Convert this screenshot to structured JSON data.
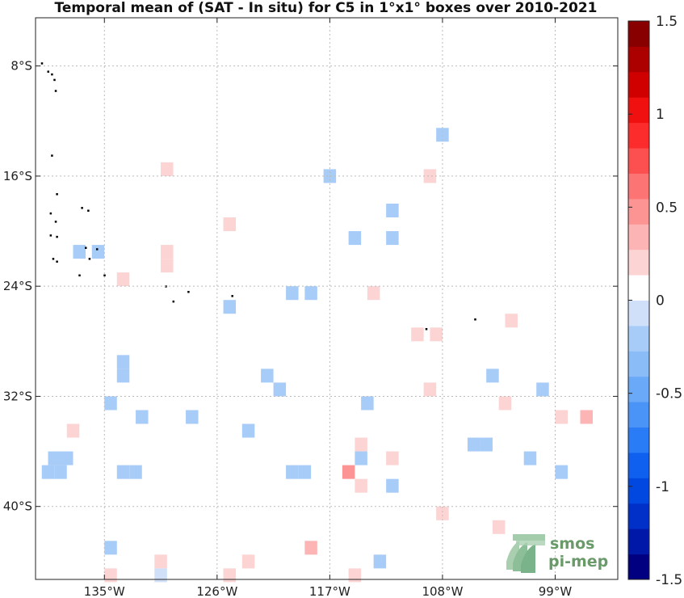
{
  "title": "Temporal mean of (SAT - In situ) for C5 in 1°x1° boxes over 2010-2021",
  "map": {
    "lon_range": [
      -140.5,
      -94.0
    ],
    "lat_range": [
      -45.3,
      -4.5
    ],
    "lon_ticks": [
      {
        "value": -135,
        "label": "135°W"
      },
      {
        "value": -126,
        "label": "126°W"
      },
      {
        "value": -117,
        "label": "117°W"
      },
      {
        "value": -108,
        "label": "108°W"
      },
      {
        "value": -99,
        "label": "99°W"
      }
    ],
    "lat_ticks": [
      {
        "value": -8,
        "label": "8°S"
      },
      {
        "value": -16,
        "label": "16°S"
      },
      {
        "value": -24,
        "label": "24°S"
      },
      {
        "value": -32,
        "label": "32°S"
      },
      {
        "value": -40,
        "label": "40°S"
      }
    ],
    "grid": true,
    "grid_style": "dotted",
    "land_color": "#000000",
    "boxes": [
      {
        "lon": -108.0,
        "lat": -13.0,
        "v": -0.15
      },
      {
        "lon": -130.0,
        "lat": -15.5,
        "v": 0.15
      },
      {
        "lon": -117.0,
        "lat": -16.0,
        "v": -0.15
      },
      {
        "lon": -109.0,
        "lat": -16.0,
        "v": 0.2
      },
      {
        "lon": -112.0,
        "lat": -18.5,
        "v": -0.15
      },
      {
        "lon": -125.0,
        "lat": -19.5,
        "v": 0.15
      },
      {
        "lon": -115.0,
        "lat": -20.5,
        "v": -0.15
      },
      {
        "lon": -112.0,
        "lat": -20.5,
        "v": -0.15
      },
      {
        "lon": -137.0,
        "lat": -21.5,
        "v": -0.2
      },
      {
        "lon": -135.5,
        "lat": -21.5,
        "v": -0.2
      },
      {
        "lon": -130.0,
        "lat": -21.5,
        "v": 0.15
      },
      {
        "lon": -130.0,
        "lat": -22.5,
        "v": 0.15
      },
      {
        "lon": -133.5,
        "lat": -23.5,
        "v": 0.2
      },
      {
        "lon": -120.0,
        "lat": -24.5,
        "v": -0.15
      },
      {
        "lon": -118.5,
        "lat": -24.5,
        "v": -0.15
      },
      {
        "lon": -113.5,
        "lat": -24.5,
        "v": 0.2
      },
      {
        "lon": -125.0,
        "lat": -25.5,
        "v": -0.15
      },
      {
        "lon": -102.5,
        "lat": -26.5,
        "v": 0.2
      },
      {
        "lon": -110.0,
        "lat": -27.5,
        "v": 0.2
      },
      {
        "lon": -108.5,
        "lat": -27.5,
        "v": 0.2
      },
      {
        "lon": -133.5,
        "lat": -29.5,
        "v": -0.15
      },
      {
        "lon": -133.5,
        "lat": -30.5,
        "v": -0.15
      },
      {
        "lon": -122.0,
        "lat": -30.5,
        "v": -0.2
      },
      {
        "lon": -104.0,
        "lat": -30.5,
        "v": -0.2
      },
      {
        "lon": -121.0,
        "lat": -31.5,
        "v": -0.15
      },
      {
        "lon": -109.0,
        "lat": -31.5,
        "v": 0.2
      },
      {
        "lon": -100.0,
        "lat": -31.5,
        "v": -0.2
      },
      {
        "lon": -134.5,
        "lat": -32.5,
        "v": -0.15
      },
      {
        "lon": -114.0,
        "lat": -32.5,
        "v": -0.15
      },
      {
        "lon": -103.0,
        "lat": -32.5,
        "v": 0.2
      },
      {
        "lon": -132.0,
        "lat": -33.5,
        "v": -0.15
      },
      {
        "lon": -128.0,
        "lat": -33.5,
        "v": -0.15
      },
      {
        "lon": -98.5,
        "lat": -33.5,
        "v": 0.2
      },
      {
        "lon": -96.5,
        "lat": -33.5,
        "v": 0.3
      },
      {
        "lon": -137.5,
        "lat": -34.5,
        "v": 0.2
      },
      {
        "lon": -123.5,
        "lat": -34.5,
        "v": -0.15
      },
      {
        "lon": -114.5,
        "lat": -35.5,
        "v": 0.15
      },
      {
        "lon": -105.5,
        "lat": -35.5,
        "v": -0.2
      },
      {
        "lon": -104.5,
        "lat": -35.5,
        "v": -0.2
      },
      {
        "lon": -139.0,
        "lat": -36.5,
        "v": -0.15
      },
      {
        "lon": -138.0,
        "lat": -36.5,
        "v": -0.15
      },
      {
        "lon": -114.5,
        "lat": -36.5,
        "v": -0.15
      },
      {
        "lon": -112.0,
        "lat": -36.5,
        "v": 0.2
      },
      {
        "lon": -101.0,
        "lat": -36.5,
        "v": -0.2
      },
      {
        "lon": -139.5,
        "lat": -37.5,
        "v": -0.15
      },
      {
        "lon": -138.5,
        "lat": -37.5,
        "v": -0.15
      },
      {
        "lon": -133.5,
        "lat": -37.5,
        "v": -0.15
      },
      {
        "lon": -132.5,
        "lat": -37.5,
        "v": -0.15
      },
      {
        "lon": -120.0,
        "lat": -37.5,
        "v": -0.15
      },
      {
        "lon": -119.0,
        "lat": -37.5,
        "v": -0.15
      },
      {
        "lon": -115.5,
        "lat": -37.5,
        "v": 0.5
      },
      {
        "lon": -98.5,
        "lat": -37.5,
        "v": -0.15
      },
      {
        "lon": -114.5,
        "lat": -38.5,
        "v": 0.2
      },
      {
        "lon": -112.0,
        "lat": -38.5,
        "v": -0.15
      },
      {
        "lon": -108.0,
        "lat": -40.5,
        "v": 0.2
      },
      {
        "lon": -103.5,
        "lat": -41.5,
        "v": 0.2
      },
      {
        "lon": -134.5,
        "lat": -43.0,
        "v": -0.15
      },
      {
        "lon": -118.5,
        "lat": -43.0,
        "v": 0.35
      },
      {
        "lon": -130.5,
        "lat": -44.0,
        "v": 0.2
      },
      {
        "lon": -123.5,
        "lat": -44.0,
        "v": 0.2
      },
      {
        "lon": -113.0,
        "lat": -44.0,
        "v": -0.15
      },
      {
        "lon": -134.5,
        "lat": -45.0,
        "v": 0.15
      },
      {
        "lon": -130.5,
        "lat": -45.0,
        "v": -0.1
      },
      {
        "lon": -125.0,
        "lat": -45.0,
        "v": 0.15
      },
      {
        "lon": -115.0,
        "lat": -45.0,
        "v": 0.15
      }
    ],
    "islands": [
      {
        "lon": -140.0,
        "lat": -7.8
      },
      {
        "lon": -139.5,
        "lat": -8.4
      },
      {
        "lon": -139.2,
        "lat": -8.6
      },
      {
        "lon": -139.0,
        "lat": -9.0
      },
      {
        "lon": -138.9,
        "lat": -9.8
      },
      {
        "lon": -139.2,
        "lat": -14.5
      },
      {
        "lon": -138.8,
        "lat": -17.3
      },
      {
        "lon": -136.8,
        "lat": -18.3
      },
      {
        "lon": -136.3,
        "lat": -18.5
      },
      {
        "lon": -139.3,
        "lat": -18.7
      },
      {
        "lon": -138.9,
        "lat": -19.3
      },
      {
        "lon": -139.3,
        "lat": -20.3
      },
      {
        "lon": -138.8,
        "lat": -20.4
      },
      {
        "lon": -136.5,
        "lat": -21.2
      },
      {
        "lon": -135.6,
        "lat": -21.3
      },
      {
        "lon": -139.1,
        "lat": -22.0
      },
      {
        "lon": -138.8,
        "lat": -22.2
      },
      {
        "lon": -136.2,
        "lat": -22.0
      },
      {
        "lon": -137.0,
        "lat": -23.2
      },
      {
        "lon": -135.0,
        "lat": -23.2
      },
      {
        "lon": -128.3,
        "lat": -24.4
      },
      {
        "lon": -130.1,
        "lat": -24.0
      },
      {
        "lon": -129.5,
        "lat": -25.1
      },
      {
        "lon": -124.8,
        "lat": -24.7
      },
      {
        "lon": -109.3,
        "lat": -27.1
      },
      {
        "lon": -105.4,
        "lat": -26.4
      }
    ]
  },
  "colorbar": {
    "vmin": -1.5,
    "vmax": 1.5,
    "n_levels": 22,
    "tick_labels": [
      {
        "value": 1.5,
        "label": "1.5"
      },
      {
        "value": 1,
        "label": "1"
      },
      {
        "value": 0.5,
        "label": "0.5"
      },
      {
        "value": 0,
        "label": "0"
      },
      {
        "value": -0.5,
        "label": "-0.5"
      },
      {
        "value": -1,
        "label": "-1"
      },
      {
        "value": -1.5,
        "label": "-1.5"
      }
    ],
    "colors_low_to_high": [
      "#000080",
      "#0018a8",
      "#0030c8",
      "#0048e0",
      "#1060f0",
      "#2a7cf6",
      "#4a94f8",
      "#6aa8f8",
      "#8abcf8",
      "#a8ccf8",
      "#cfe0f8",
      "#ffffff",
      "#fcd4d4",
      "#fcb4b4",
      "#fc9494",
      "#fc7474",
      "#fc5050",
      "#fc2c2c",
      "#f01010",
      "#d00000",
      "#ac0000",
      "#880000"
    ],
    "zero_band_color": "#ffffff"
  },
  "logo": {
    "line1": "smos",
    "line2": "pi-mep",
    "color": "#6a9a6a"
  }
}
